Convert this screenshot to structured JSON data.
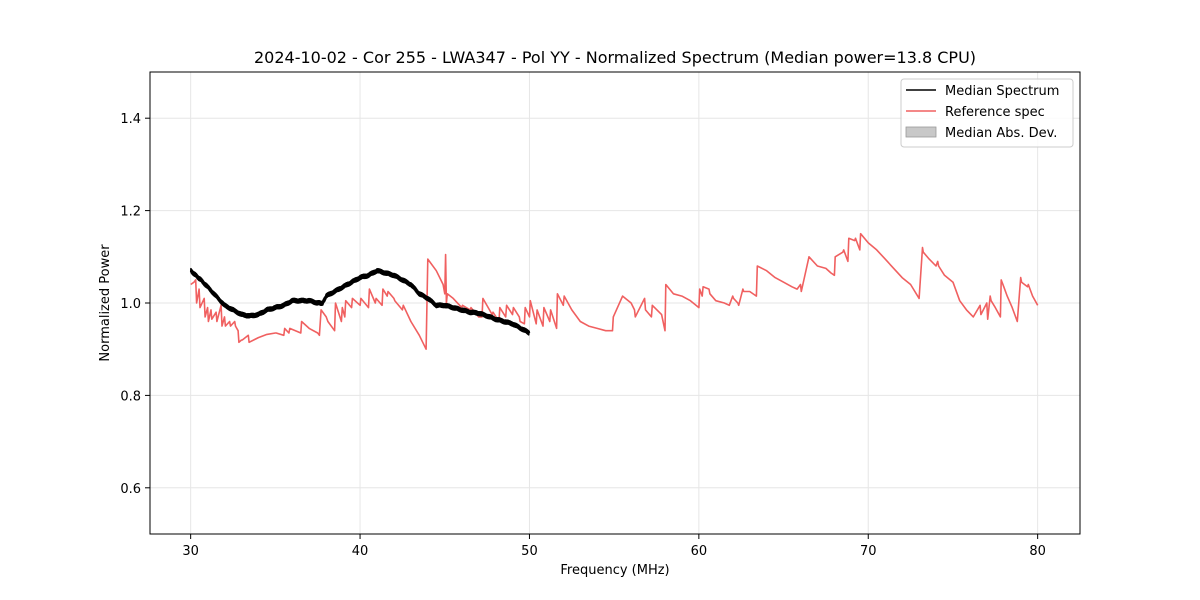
{
  "chart_data": {
    "type": "line",
    "title": "2024-10-02 - Cor 255 - LWA347 - Pol YY - Normalized Spectrum (Median power=13.8 CPU)",
    "xlabel": "Frequency (MHz)",
    "ylabel": "Normalized Power",
    "xlim": [
      27.6,
      82.5
    ],
    "ylim": [
      0.5,
      1.5
    ],
    "xticks": [
      30,
      40,
      50,
      60,
      70,
      80
    ],
    "yticks": [
      0.6,
      0.8,
      1.0,
      1.2,
      1.4
    ],
    "xtick_labels": [
      "30",
      "40",
      "50",
      "60",
      "70",
      "80"
    ],
    "ytick_labels": [
      "0.6",
      "0.8",
      "1.0",
      "1.2",
      "1.4"
    ],
    "grid": true,
    "legend": {
      "placement": "top-right",
      "entries": [
        "Median Spectrum",
        "Reference spec",
        "Median Abs. Dev."
      ]
    },
    "colors": {
      "median": "#000000",
      "reference": "#f06060",
      "mad_fill": "#c8c8c8",
      "grid": "#e6e6e6"
    },
    "series": [
      {
        "name": "Median Spectrum",
        "x": [
          30.0,
          30.3,
          30.6,
          31.0,
          31.5,
          32.0,
          32.5,
          33.0,
          33.5,
          34.0,
          34.5,
          35.0,
          35.5,
          36.0,
          36.5,
          37.0,
          37.5,
          37.8,
          38.0,
          38.5,
          39.0,
          39.5,
          40.0,
          40.5,
          41.0,
          41.5,
          42.0,
          42.5,
          43.0,
          43.5,
          44.0,
          44.5,
          45.0,
          45.5,
          46.0,
          46.5,
          47.0,
          47.5,
          48.0,
          48.5,
          49.0,
          49.5,
          50.0
        ],
        "values": [
          1.07,
          1.06,
          1.05,
          1.035,
          1.015,
          0.995,
          0.985,
          0.975,
          0.972,
          0.975,
          0.985,
          0.99,
          0.995,
          1.005,
          1.005,
          1.005,
          1.0,
          1.0,
          1.015,
          1.025,
          1.035,
          1.045,
          1.055,
          1.06,
          1.07,
          1.065,
          1.06,
          1.05,
          1.04,
          1.02,
          1.01,
          0.995,
          0.995,
          0.99,
          0.985,
          0.98,
          0.978,
          0.972,
          0.965,
          0.96,
          0.955,
          0.945,
          0.935
        ]
      },
      {
        "name": "Reference spec",
        "x": [
          30.0,
          30.2,
          30.3,
          30.35,
          30.5,
          30.55,
          30.8,
          30.85,
          31.0,
          31.05,
          31.2,
          31.25,
          31.5,
          31.55,
          31.8,
          31.85,
          32.0,
          32.05,
          32.3,
          32.35,
          32.6,
          32.65,
          32.8,
          32.85,
          33.0,
          33.05,
          33.4,
          33.45,
          34.0,
          34.5,
          35.0,
          35.05,
          35.5,
          35.55,
          35.8,
          35.85,
          36.5,
          36.55,
          37.0,
          37.5,
          37.6,
          37.7,
          38.0,
          38.1,
          38.5,
          38.55,
          38.9,
          38.95,
          39.1,
          39.15,
          39.5,
          39.55,
          40.0,
          40.05,
          40.5,
          40.55,
          40.9,
          40.95,
          41.3,
          41.35,
          41.6,
          41.65,
          42.0,
          42.05,
          42.5,
          42.55,
          43.0,
          43.5,
          43.9,
          44.0,
          44.5,
          44.9,
          45.0,
          45.05,
          45.1,
          45.15,
          45.5,
          46.0,
          46.05,
          46.5,
          46.55,
          47.0,
          47.2,
          47.25,
          47.8,
          47.85,
          48.2,
          48.25,
          48.6,
          48.65,
          49.0,
          49.05,
          49.4,
          49.45,
          49.7,
          49.75,
          50.0,
          50.05,
          50.4,
          50.45,
          50.8,
          50.85,
          51.2,
          51.25,
          51.6,
          51.65,
          52.0,
          52.05,
          52.5,
          53.0,
          53.5,
          54.0,
          54.5,
          54.9,
          54.95,
          55.5,
          56.0,
          56.2,
          56.25,
          56.8,
          56.85,
          57.2,
          57.25,
          57.8,
          58.0,
          58.05,
          58.5,
          59.0,
          59.5,
          60.0,
          60.05,
          60.2,
          60.25,
          60.6,
          60.65,
          61.0,
          61.5,
          61.8,
          62.0,
          62.05,
          62.3,
          62.35,
          62.6,
          62.65,
          63.0,
          63.4,
          63.45,
          64.0,
          64.5,
          65.0,
          65.5,
          65.8,
          66.0,
          66.05,
          66.5,
          67.0,
          67.5,
          67.8,
          68.0,
          68.05,
          68.5,
          68.55,
          68.8,
          68.85,
          69.2,
          69.25,
          69.5,
          69.55,
          70.0,
          70.5,
          71.0,
          71.5,
          72.0,
          72.5,
          73.0,
          73.2,
          73.25,
          73.6,
          74.0,
          74.1,
          74.15,
          74.5,
          75.0,
          75.4,
          75.8,
          76.2,
          76.6,
          76.65,
          77.0,
          77.05,
          77.2,
          77.25,
          77.5,
          77.8,
          77.85,
          78.0,
          78.2,
          78.5,
          78.8,
          79.0,
          79.05,
          79.4,
          79.45,
          79.7,
          80.0
        ],
        "values": [
          1.04,
          1.045,
          1.05,
          1.0,
          1.03,
          0.99,
          1.01,
          0.97,
          0.99,
          0.96,
          0.985,
          0.965,
          0.98,
          0.96,
          0.995,
          0.95,
          0.97,
          0.95,
          0.96,
          0.95,
          0.96,
          0.95,
          0.94,
          0.915,
          0.92,
          0.92,
          0.93,
          0.915,
          0.925,
          0.932,
          0.935,
          0.935,
          0.93,
          0.945,
          0.935,
          0.945,
          0.935,
          0.96,
          0.945,
          0.935,
          0.93,
          0.985,
          0.97,
          0.96,
          0.94,
          1.0,
          0.96,
          0.99,
          0.97,
          1.005,
          0.99,
          1.01,
          0.995,
          1.01,
          0.99,
          1.03,
          1.0,
          1.01,
          0.995,
          1.03,
          1.015,
          1.025,
          1.01,
          1.005,
          0.985,
          0.995,
          0.96,
          0.93,
          0.9,
          1.095,
          1.07,
          1.04,
          1.02,
          1.105,
          1.0,
          1.02,
          1.01,
          0.99,
          0.995,
          0.985,
          0.99,
          0.97,
          0.97,
          1.01,
          0.975,
          0.98,
          0.96,
          0.99,
          0.97,
          0.995,
          0.975,
          0.99,
          0.97,
          0.96,
          0.955,
          0.99,
          0.97,
          1.005,
          0.955,
          0.985,
          0.95,
          0.99,
          0.96,
          0.985,
          0.945,
          1.02,
          0.995,
          1.015,
          0.985,
          0.96,
          0.95,
          0.945,
          0.94,
          0.94,
          0.97,
          1.015,
          1.0,
          0.985,
          0.97,
          1.01,
          0.985,
          0.97,
          0.995,
          0.975,
          0.94,
          1.04,
          1.02,
          1.015,
          1.005,
          0.99,
          1.03,
          1.015,
          1.035,
          1.03,
          1.02,
          1.005,
          1.0,
          0.995,
          1.015,
          1.01,
          1.0,
          0.995,
          1.03,
          1.025,
          1.025,
          1.015,
          1.08,
          1.07,
          1.055,
          1.045,
          1.035,
          1.03,
          1.04,
          1.025,
          1.1,
          1.08,
          1.075,
          1.065,
          1.06,
          1.1,
          1.11,
          1.115,
          1.09,
          1.14,
          1.135,
          1.14,
          1.115,
          1.15,
          1.13,
          1.115,
          1.095,
          1.075,
          1.055,
          1.04,
          1.01,
          1.12,
          1.11,
          1.095,
          1.08,
          1.09,
          1.08,
          1.06,
          1.045,
          1.005,
          0.985,
          0.97,
          0.995,
          0.975,
          1.0,
          0.965,
          1.015,
          1.005,
          0.99,
          0.97,
          1.05,
          1.035,
          1.015,
          0.99,
          0.96,
          1.055,
          1.045,
          1.035,
          1.04,
          1.015,
          0.995
        ]
      }
    ]
  }
}
